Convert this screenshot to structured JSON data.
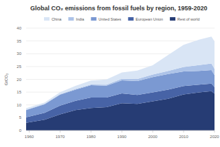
{
  "chart_data": {
    "type": "area",
    "stacked": true,
    "grid": true,
    "legend": "top",
    "title": "Global CO₂ emissions from fossil fuels by region, 1959-2020",
    "y_label": "GtCO₂",
    "x": [
      1959,
      1965,
      1970,
      1975,
      1980,
      1985,
      1990,
      1995,
      2000,
      2005,
      2010,
      2015,
      2019,
      2020
    ],
    "xlim": [
      1959,
      2020
    ],
    "xticks": [
      1960,
      1970,
      1980,
      1990,
      2000,
      2010,
      2020
    ],
    "ylim": [
      0,
      40
    ],
    "yticks": [
      0,
      5,
      10,
      15,
      20,
      25,
      30,
      35,
      40
    ],
    "series": [
      {
        "name": "China",
        "color": "#d9e5f5",
        "values": [
          0.65,
          0.5,
          0.8,
          1.2,
          1.5,
          2.0,
          2.5,
          3.3,
          3.6,
          6.2,
          8.7,
          9.9,
          10.5,
          10.7
        ]
      },
      {
        "name": "India",
        "color": "#adc3e8",
        "values": [
          0.1,
          0.17,
          0.2,
          0.25,
          0.3,
          0.45,
          0.6,
          0.85,
          1.0,
          1.2,
          1.7,
          2.3,
          2.6,
          2.4
        ]
      },
      {
        "name": "United States",
        "color": "#7b99d2",
        "values": [
          2.8,
          3.4,
          4.3,
          4.4,
          4.8,
          4.6,
          5.1,
          5.4,
          6.0,
          6.1,
          5.7,
          5.4,
          5.3,
          4.7
        ]
      },
      {
        "name": "European Union",
        "color": "#4763a6",
        "values": [
          2.2,
          2.7,
          3.4,
          3.6,
          4.1,
          3.8,
          3.8,
          3.5,
          3.5,
          3.6,
          3.3,
          3.0,
          2.9,
          2.6
        ]
      },
      {
        "name": "Rest of world",
        "color": "#263c74",
        "values": [
          3.0,
          4.2,
          6.3,
          8.0,
          8.8,
          9.1,
          10.7,
          10.4,
          11.4,
          12.4,
          14.1,
          14.9,
          15.4,
          14.4
        ]
      }
    ]
  }
}
